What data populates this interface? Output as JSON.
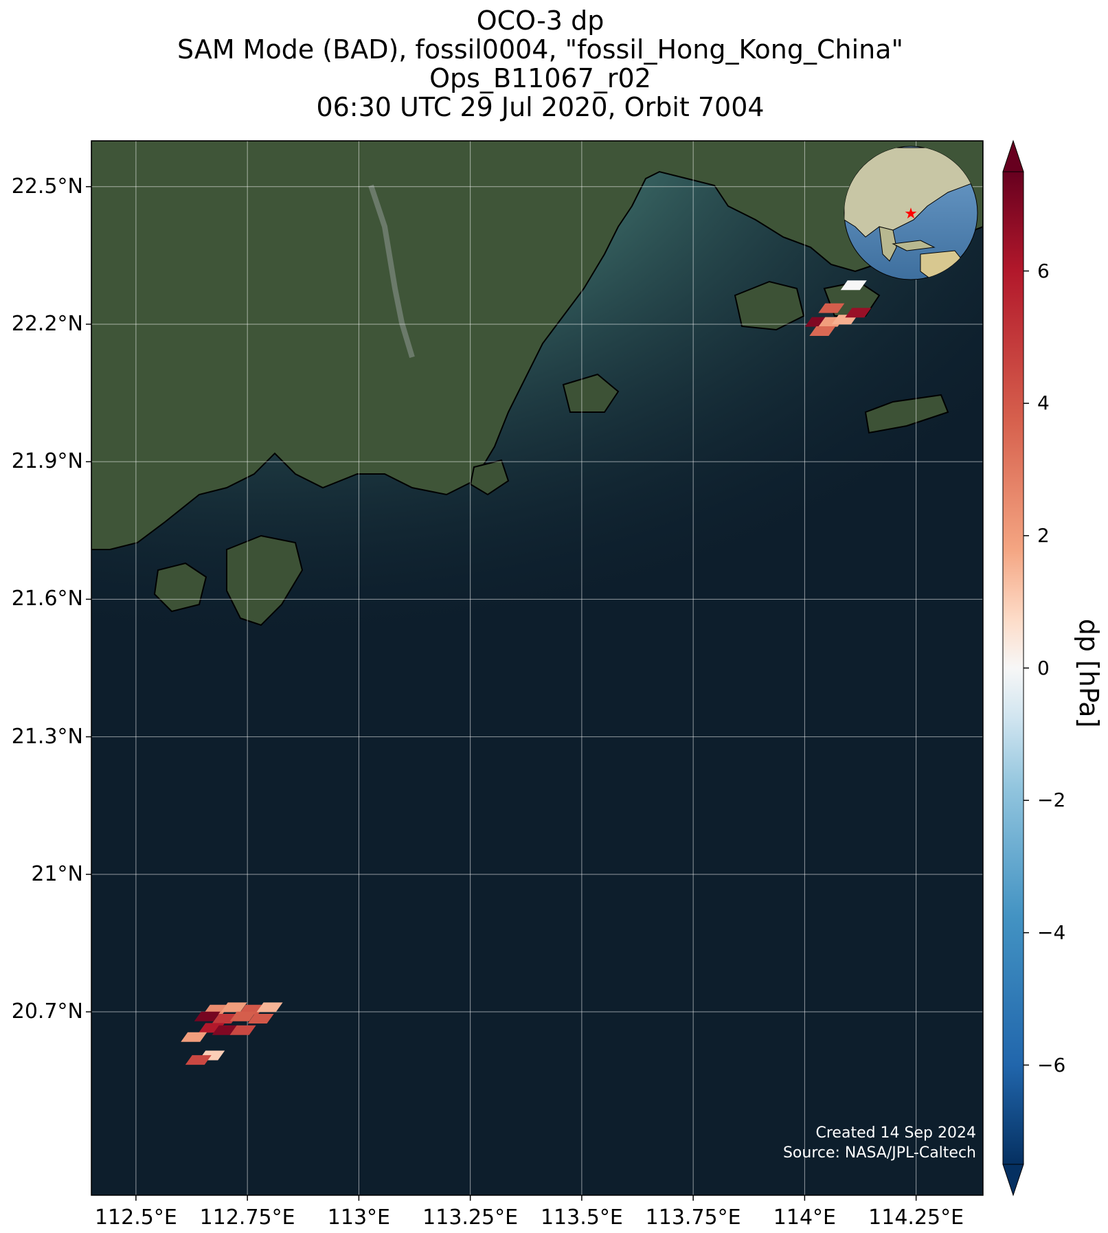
{
  "title": {
    "line1": "OCO-3 dp",
    "line2": "SAM Mode (BAD), fossil0004, \"fossil_Hong_Kong_China\"",
    "line3": "Ops_B11067_r02",
    "line4": "06:30 UTC 29 Jul 2020, Orbit 7004"
  },
  "map": {
    "lon_range": [
      112.4,
      114.4
    ],
    "lat_range": [
      20.3,
      22.6
    ],
    "lat_ticks": [
      "22.5°N",
      "22.2°N",
      "21.9°N",
      "21.6°N",
      "21.3°N",
      "21°N",
      "20.7°N"
    ],
    "lon_ticks": [
      "112.5°E",
      "112.75°E",
      "113°E",
      "113.25°E",
      "113.5°E",
      "113.75°E",
      "114°E",
      "114.25°E"
    ],
    "ocean_color": "#0d1e2c",
    "land_color": "#3f5538",
    "gridlines": true,
    "inset_globe": {
      "center_lon": 114.1,
      "center_lat": 22.3,
      "marker": "red-star"
    }
  },
  "chart_data": {
    "type": "heatmap",
    "variable": "dp",
    "colorbar": {
      "label": "dp [hPa]",
      "ticks": [
        "6",
        "4",
        "2",
        "0",
        "−2",
        "−4",
        "−6"
      ],
      "vmin": -7.5,
      "vmax": 7.5,
      "colormap": "RdBu_r",
      "extend": "both"
    },
    "soundings": [
      {
        "lon": 114.11,
        "lat": 22.285,
        "dp": 0.0
      },
      {
        "lon": 114.06,
        "lat": 22.235,
        "dp": 3.8
      },
      {
        "lon": 114.03,
        "lat": 22.205,
        "dp": 7.0
      },
      {
        "lon": 114.06,
        "lat": 22.205,
        "dp": 2.0
      },
      {
        "lon": 114.09,
        "lat": 22.21,
        "dp": 1.6
      },
      {
        "lon": 114.12,
        "lat": 22.225,
        "dp": 6.5
      },
      {
        "lon": 114.04,
        "lat": 22.185,
        "dp": 3.5
      },
      {
        "lon": 112.68,
        "lat": 20.705,
        "dp": 2.5
      },
      {
        "lon": 112.72,
        "lat": 20.71,
        "dp": 2.0
      },
      {
        "lon": 112.76,
        "lat": 20.705,
        "dp": 4.0
      },
      {
        "lon": 112.8,
        "lat": 20.71,
        "dp": 1.5
      },
      {
        "lon": 112.66,
        "lat": 20.69,
        "dp": 7.2
      },
      {
        "lon": 112.7,
        "lat": 20.685,
        "dp": 5.0
      },
      {
        "lon": 112.74,
        "lat": 20.69,
        "dp": 3.8
      },
      {
        "lon": 112.78,
        "lat": 20.685,
        "dp": 4.0
      },
      {
        "lon": 112.67,
        "lat": 20.665,
        "dp": 6.0
      },
      {
        "lon": 112.7,
        "lat": 20.66,
        "dp": 7.0
      },
      {
        "lon": 112.74,
        "lat": 20.66,
        "dp": 4.5
      },
      {
        "lon": 112.63,
        "lat": 20.645,
        "dp": 2.0
      },
      {
        "lon": 112.67,
        "lat": 20.605,
        "dp": 1.0
      },
      {
        "lon": 112.64,
        "lat": 20.595,
        "dp": 4.5
      }
    ]
  },
  "footer": {
    "created": "Created 14 Sep 2024",
    "source": "Source: NASA/JPL-Caltech"
  }
}
